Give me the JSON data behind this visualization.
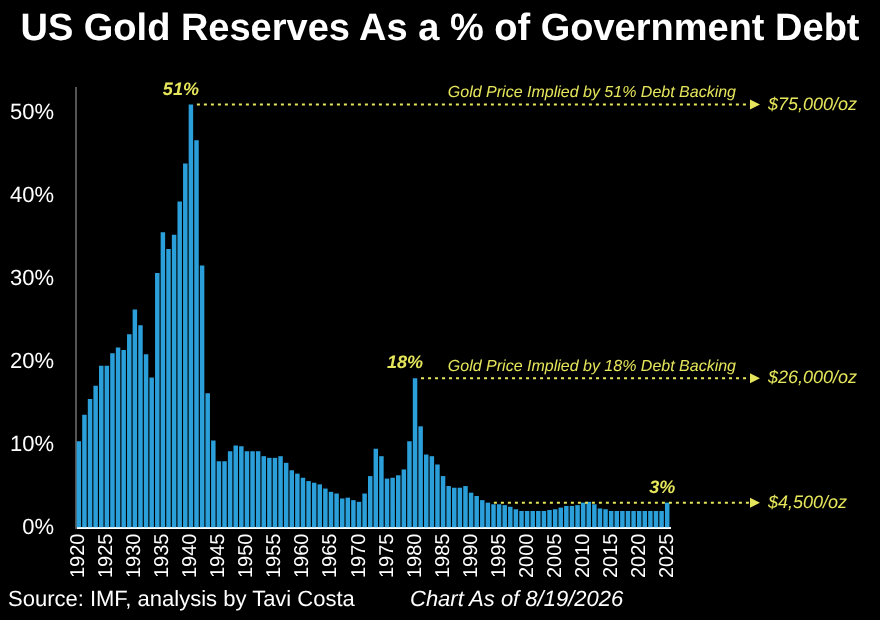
{
  "chart_data": {
    "type": "bar",
    "title": "US Gold Reserves As a % of Government Debt",
    "categories": [
      "1920",
      null,
      null,
      null,
      null,
      "1925",
      null,
      null,
      null,
      null,
      "1930",
      null,
      null,
      null,
      null,
      "1935",
      null,
      null,
      null,
      null,
      "1940",
      null,
      null,
      null,
      null,
      "1945",
      null,
      null,
      null,
      null,
      "1950",
      null,
      null,
      null,
      null,
      "1955",
      null,
      null,
      null,
      null,
      "1960",
      null,
      null,
      null,
      null,
      "1965",
      null,
      null,
      null,
      null,
      "1970",
      null,
      null,
      null,
      null,
      "1975",
      null,
      null,
      null,
      null,
      "1980",
      null,
      null,
      null,
      null,
      "1985",
      null,
      null,
      null,
      null,
      "1990",
      null,
      null,
      null,
      null,
      "1995",
      null,
      null,
      null,
      null,
      "2000",
      null,
      null,
      null,
      null,
      "2005",
      null,
      null,
      null,
      null,
      "2010",
      null,
      null,
      null,
      null,
      "2015",
      null,
      null,
      null,
      null,
      "2020",
      null,
      null,
      null,
      null,
      "2025"
    ],
    "values": [
      10.4,
      13.6,
      15.5,
      17.1,
      19.5,
      19.5,
      21,
      21.7,
      21.4,
      23.3,
      26.3,
      24.4,
      20.9,
      18.1,
      30.7,
      35.6,
      33.6,
      35.3,
      39.3,
      43.9,
      51,
      46.7,
      31.6,
      16.2,
      10.5,
      8,
      8,
      9.2,
      9.9,
      9.8,
      9.2,
      9.2,
      9.2,
      8.6,
      8.4,
      8.4,
      8.6,
      7.8,
      6.9,
      6.5,
      6,
      5.6,
      5.4,
      5.2,
      4.7,
      4.3,
      4.1,
      3.5,
      3.6,
      3.3,
      3.1,
      4.1,
      6.2,
      9.5,
      8.6,
      5.9,
      6,
      6.3,
      7,
      10.4,
      18,
      12.2,
      8.8,
      8.6,
      7.6,
      6.2,
      5,
      4.8,
      4.8,
      5,
      4.2,
      3.8,
      3.3,
      3,
      2.8,
      2.8,
      2.7,
      2.5,
      2.2,
      2,
      2,
      2,
      2,
      2,
      2.1,
      2.2,
      2.4,
      2.6,
      2.6,
      2.7,
      3,
      3.1,
      2.8,
      2.3,
      2.2,
      2,
      2,
      2,
      2,
      2,
      2,
      2,
      2,
      2,
      2,
      3
    ],
    "color": "#2b9fd9",
    "ylim": [
      0,
      53
    ],
    "yticks": [
      {
        "value": 0,
        "label": "0%"
      },
      {
        "value": 10,
        "label": "10%"
      },
      {
        "value": 20,
        "label": "20%"
      },
      {
        "value": 30,
        "label": "30%"
      },
      {
        "value": 40,
        "label": "40%"
      },
      {
        "value": 50,
        "label": "50%"
      }
    ],
    "grid": false,
    "legend": false,
    "ref_lines": [
      {
        "axis": "y",
        "value": 51,
        "label": "$75,000/oz",
        "color": "#e6e65c",
        "line_style": "dotted"
      },
      {
        "axis": "y",
        "value": 18,
        "label": "$26,000/oz",
        "color": "#e6e65c",
        "line_style": "dotted"
      },
      {
        "axis": "y",
        "value": 3,
        "label": "$4,500/oz",
        "color": "#e6e65c",
        "line_style": "dotted"
      }
    ],
    "annotations": [
      {
        "text": "51%",
        "x": "1940",
        "y": 51
      },
      {
        "text": "18%",
        "x": "1980",
        "y": 18
      },
      {
        "text": "3%",
        "x": "2025",
        "y": 3
      },
      "Gold Price Implied by 51% Debt Backing",
      "Gold Price Implied by 18% Debt Backing",
      "Source: IMF, analysis by Tavi Costa",
      "Chart As of 8/19/2026"
    ]
  }
}
